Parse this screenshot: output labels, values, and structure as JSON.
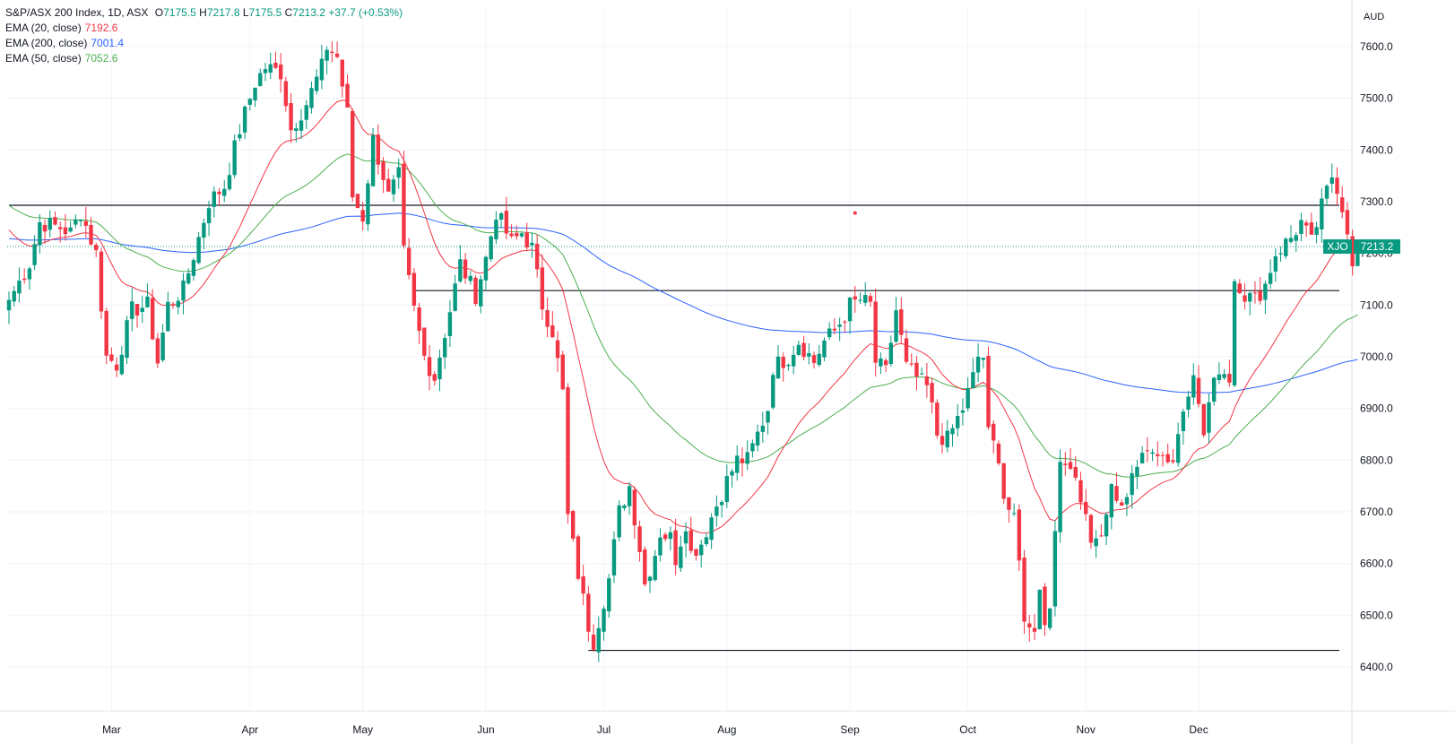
{
  "legend": {
    "title": "S&P/ASX 200 Index, 1D, ASX",
    "open_label": "O",
    "open": "7175.5",
    "high_label": "H",
    "high": "7217.8",
    "low_label": "L",
    "low": "7175.5",
    "close_label": "C",
    "close": "7213.2",
    "change": "+37.7 (+0.53%)",
    "indicators": [
      {
        "label": "EMA (20, close)",
        "value": "7192.6",
        "color": "#f23645"
      },
      {
        "label": "EMA (200, close)",
        "value": "7001.4",
        "color": "#2962ff"
      },
      {
        "label": "EMA (50, close)",
        "value": "7052.6",
        "color": "#4caf50"
      }
    ]
  },
  "currency": "AUD",
  "price_tag": {
    "symbol": "XJO",
    "value": "7213.2",
    "color": "#089981"
  },
  "colors": {
    "up": "#089981",
    "down": "#f23645",
    "ema20": "#f23645",
    "ema200": "#2962ff",
    "ema50": "#4caf50",
    "grid": "#f0f3fa"
  },
  "chart_data": {
    "type": "candlestick",
    "title": "S&P/ASX 200 Index, 1D, ASX",
    "ylim": [
      6370,
      7660
    ],
    "y_ticks": [
      "7600.0",
      "7500.0",
      "7400.0",
      "7300.0",
      "7200.0",
      "7100.0",
      "7000.0",
      "6900.0",
      "6800.0",
      "6700.0",
      "6600.0",
      "6500.0",
      "6400.0"
    ],
    "x_ticks": [
      "Mar",
      "Apr",
      "May",
      "Jun",
      "Jul",
      "Aug",
      "Sep",
      "Oct",
      "Nov",
      "Dec"
    ],
    "grid": true,
    "horizontal_lines": [
      {
        "value": 7293,
        "from_index": 0,
        "to_index": 264
      },
      {
        "value": 7128,
        "from_index": 79,
        "to_index": 264
      },
      {
        "value": 6432,
        "from_index": 113,
        "to_index": 264
      }
    ],
    "marker": {
      "index": 165,
      "value": 7278
    },
    "anchors": [
      [
        0,
        7110
      ],
      [
        4,
        7180
      ],
      [
        6,
        7260
      ],
      [
        10,
        7250
      ],
      [
        12,
        7240
      ],
      [
        14,
        7280
      ],
      [
        17,
        7200
      ],
      [
        19,
        7000
      ],
      [
        21,
        6985
      ],
      [
        24,
        7090
      ],
      [
        27,
        7100
      ],
      [
        29,
        6990
      ],
      [
        31,
        7100
      ],
      [
        34,
        7130
      ],
      [
        37,
        7230
      ],
      [
        39,
        7300
      ],
      [
        42,
        7330
      ],
      [
        45,
        7440
      ],
      [
        48,
        7530
      ],
      [
        50,
        7560
      ],
      [
        53,
        7550
      ],
      [
        55,
        7440
      ],
      [
        58,
        7490
      ],
      [
        61,
        7560
      ],
      [
        62,
        7600
      ],
      [
        64,
        7580
      ],
      [
        66,
        7470
      ],
      [
        67,
        7310
      ],
      [
        69,
        7270
      ],
      [
        71,
        7420
      ],
      [
        73,
        7350
      ],
      [
        74,
        7310
      ],
      [
        76,
        7350
      ],
      [
        77,
        7200
      ],
      [
        79,
        7090
      ],
      [
        81,
        7000
      ],
      [
        83,
        6960
      ],
      [
        86,
        7090
      ],
      [
        88,
        7180
      ],
      [
        91,
        7120
      ],
      [
        93,
        7190
      ],
      [
        95,
        7280
      ],
      [
        98,
        7220
      ],
      [
        100,
        7240
      ],
      [
        102,
        7210
      ],
      [
        104,
        7100
      ],
      [
        106,
        7050
      ],
      [
        108,
        6930
      ],
      [
        109,
        6690
      ],
      [
        111,
        6580
      ],
      [
        112,
        6530
      ],
      [
        113,
        6480
      ],
      [
        114,
        6450
      ],
      [
        116,
        6530
      ],
      [
        117,
        6570
      ],
      [
        119,
        6700
      ],
      [
        121,
        6750
      ],
      [
        123,
        6630
      ],
      [
        124,
        6560
      ],
      [
        126,
        6620
      ],
      [
        127,
        6660
      ],
      [
        129,
        6650
      ],
      [
        130,
        6610
      ],
      [
        132,
        6680
      ],
      [
        133,
        6620
      ],
      [
        135,
        6640
      ],
      [
        137,
        6690
      ],
      [
        140,
        6760
      ],
      [
        142,
        6800
      ],
      [
        144,
        6800
      ],
      [
        146,
        6850
      ],
      [
        148,
        6900
      ],
      [
        149,
        6980
      ],
      [
        152,
        7000
      ],
      [
        154,
        7030
      ],
      [
        157,
        6990
      ],
      [
        159,
        7030
      ],
      [
        161,
        7050
      ],
      [
        163,
        7080
      ],
      [
        164,
        7100
      ],
      [
        166,
        7110
      ],
      [
        168,
        7100
      ],
      [
        169,
        6990
      ],
      [
        171,
        6970
      ],
      [
        173,
        7090
      ],
      [
        175,
        6980
      ],
      [
        177,
        6960
      ],
      [
        179,
        6940
      ],
      [
        180,
        6900
      ],
      [
        181,
        6850
      ],
      [
        183,
        6840
      ],
      [
        185,
        6880
      ],
      [
        186,
        6900
      ],
      [
        188,
        6960
      ],
      [
        189,
        7000
      ],
      [
        190,
        7000
      ],
      [
        191,
        6850
      ],
      [
        193,
        6810
      ],
      [
        194,
        6730
      ],
      [
        196,
        6680
      ],
      [
        197,
        6600
      ],
      [
        198,
        6500
      ],
      [
        199,
        6470
      ],
      [
        200,
        6480
      ],
      [
        201,
        6560
      ],
      [
        202,
        6480
      ],
      [
        203,
        6520
      ],
      [
        204,
        6680
      ],
      [
        205,
        6780
      ],
      [
        207,
        6800
      ],
      [
        208,
        6770
      ],
      [
        209,
        6730
      ],
      [
        211,
        6650
      ],
      [
        212,
        6640
      ],
      [
        214,
        6680
      ],
      [
        215,
        6750
      ],
      [
        217,
        6700
      ],
      [
        219,
        6780
      ],
      [
        221,
        6800
      ],
      [
        223,
        6830
      ],
      [
        225,
        6810
      ],
      [
        227,
        6800
      ],
      [
        228,
        6850
      ],
      [
        229,
        6900
      ],
      [
        231,
        6980
      ],
      [
        232,
        6900
      ],
      [
        233,
        6850
      ],
      [
        234,
        6910
      ],
      [
        236,
        6980
      ],
      [
        238,
        6960
      ],
      [
        239,
        7150
      ],
      [
        240,
        7140
      ],
      [
        241,
        7120
      ],
      [
        243,
        7110
      ],
      [
        245,
        7140
      ],
      [
        247,
        7200
      ],
      [
        250,
        7230
      ],
      [
        252,
        7260
      ],
      [
        254,
        7220
      ],
      [
        256,
        7290
      ],
      [
        258,
        7350
      ],
      [
        259,
        7330
      ],
      [
        260,
        7290
      ],
      [
        261,
        7250
      ],
      [
        262,
        7175
      ]
    ],
    "last_candle": {
      "index": 263,
      "open": 7175.5,
      "high": 7217.8,
      "low": 7175.5,
      "close": 7213.2
    },
    "series": [
      {
        "name": "EMA (20, close)",
        "period": 20,
        "color": "#f23645",
        "last": 7192.6
      },
      {
        "name": "EMA (200, close)",
        "period": 200,
        "color": "#2962ff",
        "last": 7001.4
      },
      {
        "name": "EMA (50, close)",
        "period": 50,
        "color": "#4caf50",
        "last": 7052.6
      }
    ]
  }
}
